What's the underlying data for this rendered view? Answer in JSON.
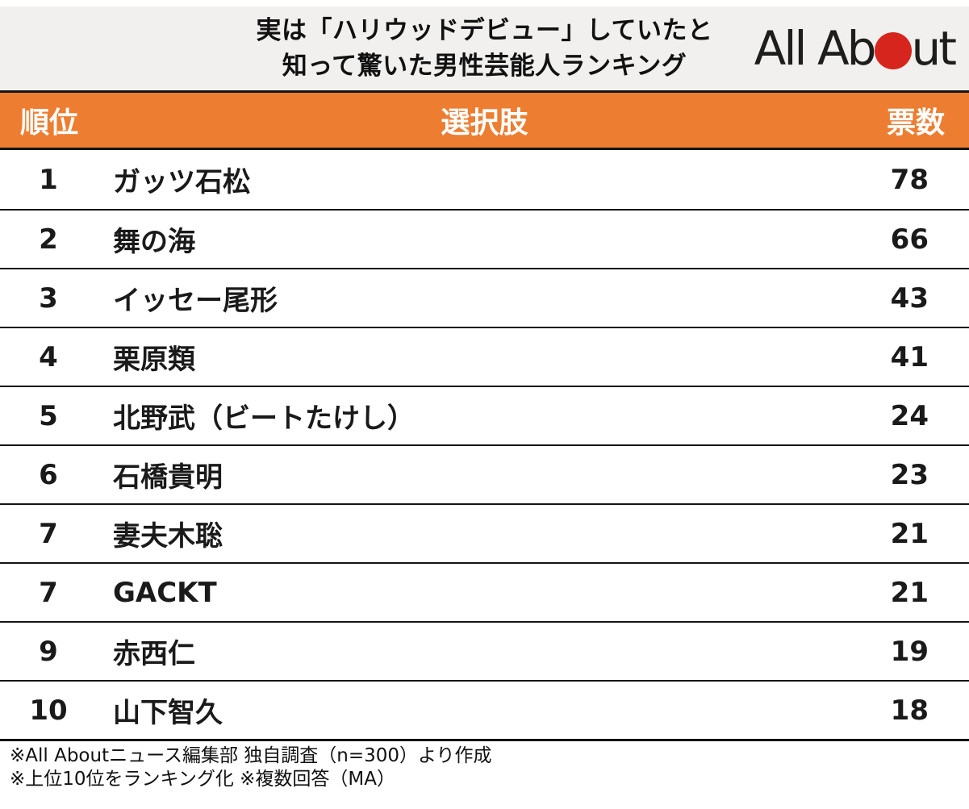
{
  "header": {
    "title_line1": "実は「ハリウッドデビュー」していたと",
    "title_line2": "知って驚いた男性芸能人ランキング",
    "logo": {
      "text_left": "All Ab",
      "text_right": "ut"
    }
  },
  "table": {
    "columns": {
      "rank": "順位",
      "choice": "選択肢",
      "votes": "票数"
    },
    "rows": [
      {
        "rank": "1",
        "name": "ガッツ石松",
        "votes": "78"
      },
      {
        "rank": "2",
        "name": "舞の海",
        "votes": "66"
      },
      {
        "rank": "3",
        "name": "イッセー尾形",
        "votes": "43"
      },
      {
        "rank": "4",
        "name": "栗原類",
        "votes": "41"
      },
      {
        "rank": "5",
        "name": "北野武（ビートたけし）",
        "votes": "24"
      },
      {
        "rank": "6",
        "name": "石橋貴明",
        "votes": "23"
      },
      {
        "rank": "7",
        "name": "妻夫木聡",
        "votes": "21"
      },
      {
        "rank": "7",
        "name": "GACKT",
        "votes": "21"
      },
      {
        "rank": "9",
        "name": "赤西仁",
        "votes": "19"
      },
      {
        "rank": "10",
        "name": "山下智久",
        "votes": "18"
      }
    ]
  },
  "footer": {
    "note1": "※All Aboutニュース編集部 独自調査（n=300）より作成",
    "note2": "※上位10位をランキング化 ※複数回答（MA）"
  },
  "colors": {
    "accent_orange": "#ED7D31",
    "band_gray": "#F1F0EE",
    "logo_red": "#D6251C",
    "line_black": "#141414"
  },
  "chart_data": {
    "type": "table",
    "title": "実は「ハリウッドデビュー」していたと知って驚いた男性芸能人ランキング",
    "columns": [
      "順位",
      "選択肢",
      "票数"
    ],
    "rows": [
      [
        1,
        "ガッツ石松",
        78
      ],
      [
        2,
        "舞の海",
        66
      ],
      [
        3,
        "イッセー尾形",
        43
      ],
      [
        4,
        "栗原類",
        41
      ],
      [
        5,
        "北野武（ビートたけし）",
        24
      ],
      [
        6,
        "石橋貴明",
        23
      ],
      [
        7,
        "妻夫木聡",
        21
      ],
      [
        7,
        "GACKT",
        21
      ],
      [
        9,
        "赤西仁",
        19
      ],
      [
        10,
        "山下智久",
        18
      ]
    ],
    "notes": [
      "※All Aboutニュース編集部 独自調査（n=300）より作成",
      "※上位10位をランキング化 ※複数回答（MA）"
    ],
    "source": "All About"
  }
}
